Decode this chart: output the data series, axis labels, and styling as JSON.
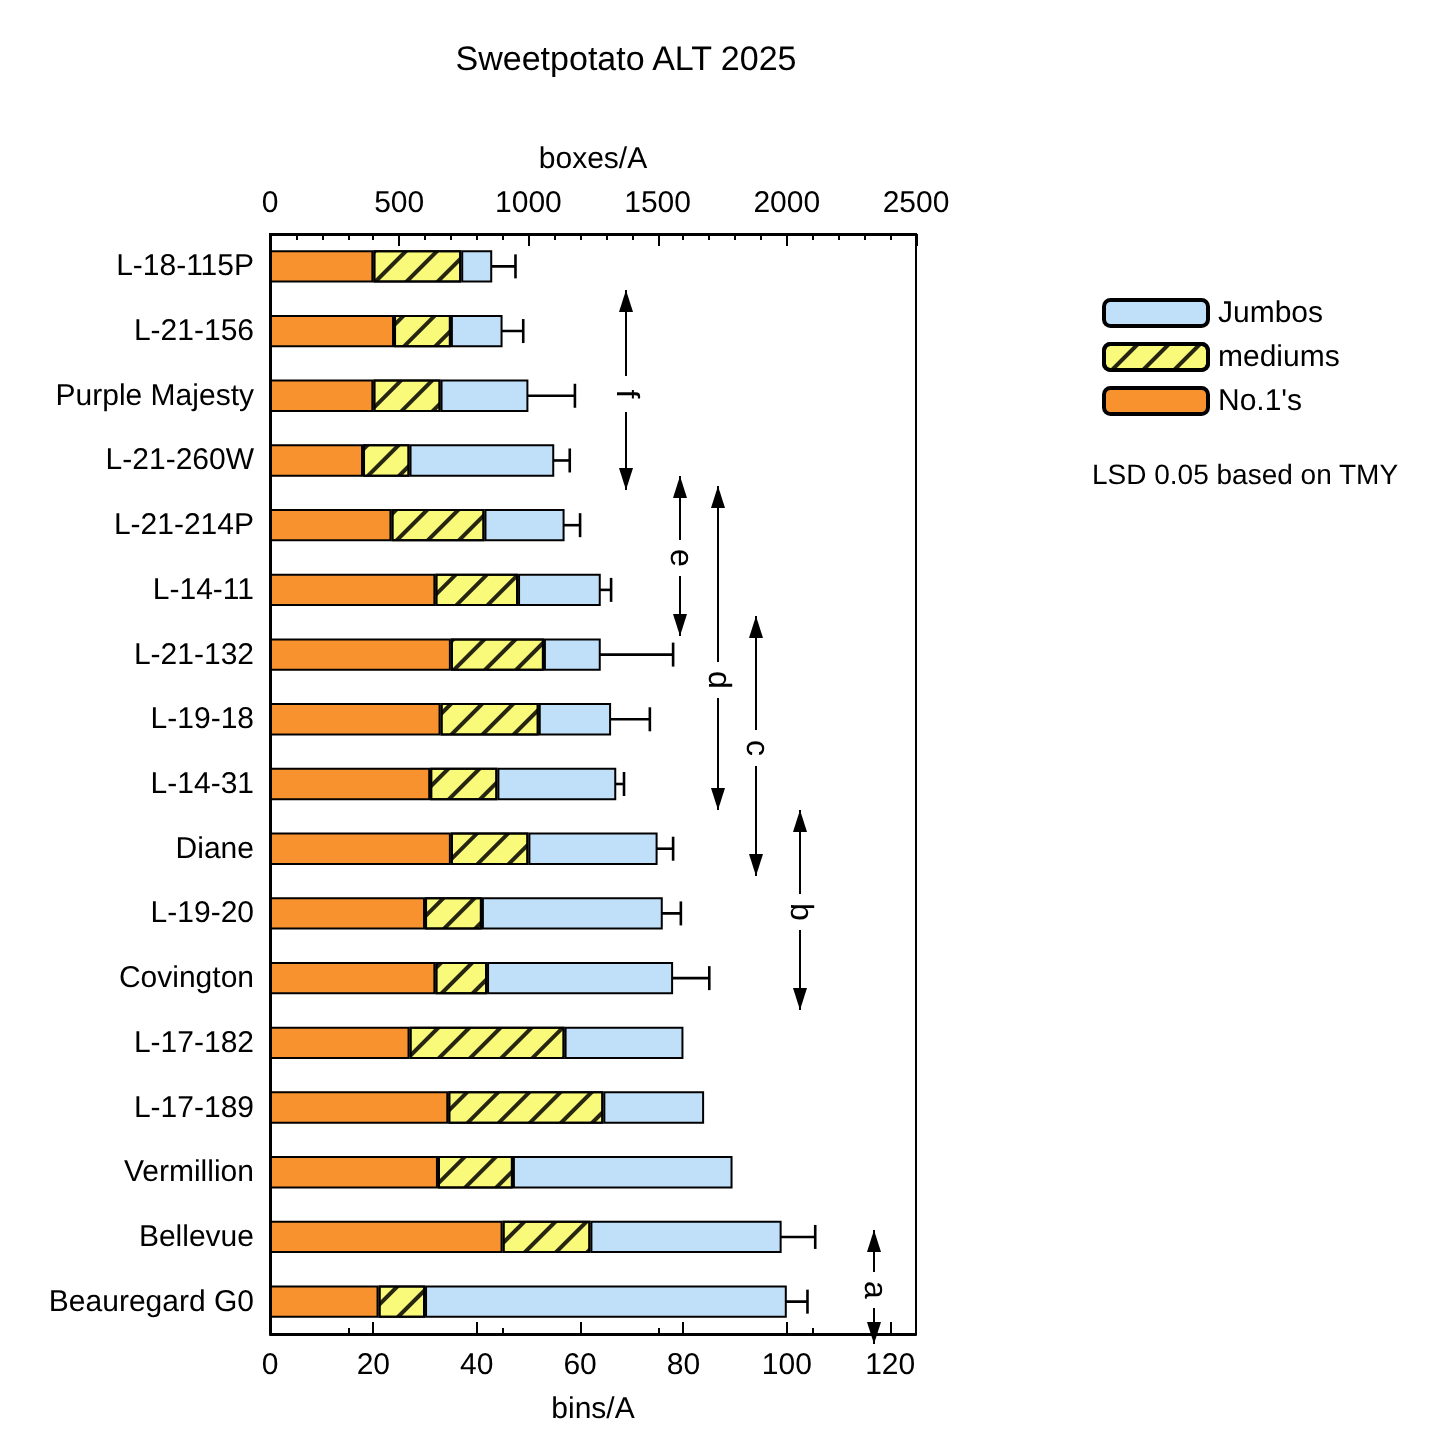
{
  "chart_data": {
    "type": "bar",
    "orientation": "horizontal",
    "stacked": true,
    "title": "Sweetpotato ALT 2025",
    "xlabel": "bins/A",
    "x2label": "boxes/A",
    "categories": [
      "L-18-115P",
      "L-21-156",
      "Purple Majesty",
      "L-21-260W",
      "L-21-214P",
      "L-14-11",
      "L-21-132",
      "L-19-18",
      "L-14-31",
      "Diane",
      "L-19-20",
      "Covington",
      "L-17-182",
      "L-17-189",
      "Vermillion",
      "Bellevue",
      "Beauregard G0"
    ],
    "series": [
      {
        "name": "No.1's",
        "color": "#f7922e",
        "values": [
          20,
          24,
          20,
          18,
          23.5,
          32,
          35,
          33,
          31,
          35,
          30,
          32,
          27,
          34.5,
          32.5,
          45,
          21
        ]
      },
      {
        "name": "mediums",
        "color": "#fafa7a",
        "values": [
          17,
          11,
          13,
          9,
          18,
          16,
          18,
          19,
          13,
          15,
          11,
          10,
          30,
          30,
          14.5,
          17,
          9
        ]
      },
      {
        "name": "Jumbos",
        "color": "#c0e0fa",
        "values": [
          6,
          10,
          17,
          28,
          15.5,
          16,
          11,
          14,
          23,
          25,
          35,
          36,
          23,
          19.5,
          42.5,
          37,
          70
        ],
        "errors": [
          4.5,
          4,
          9,
          3,
          3,
          2,
          14,
          7.5,
          1.5,
          3,
          3.5,
          7,
          null,
          null,
          null,
          6.5,
          4
        ]
      }
    ],
    "xlim": [
      0,
      125
    ],
    "xticks": [
      0,
      20,
      40,
      60,
      80,
      100,
      120
    ],
    "x2lim": [
      0,
      2500
    ],
    "x2ticks": [
      0,
      500,
      1000,
      1500,
      2000,
      2500
    ],
    "legend": "top right",
    "grid": false,
    "annotations": [
      "f",
      "e",
      "d",
      "c",
      "b",
      "a",
      "LSD 0.05 based on TMY"
    ]
  }
}
